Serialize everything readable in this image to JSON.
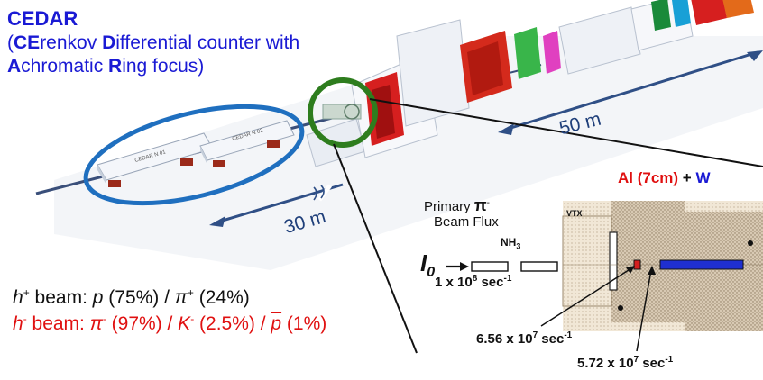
{
  "cedar": {
    "title": "CEDAR",
    "line1_open": "(",
    "line1_b1": "CE",
    "line1_t1": "renkov ",
    "line1_b2": "D",
    "line1_t2": "ifferential counter with",
    "line2_b1": "A",
    "line2_t1": "chromatic ",
    "line2_b2": "R",
    "line2_t2": "ing focus)"
  },
  "cedar_unit_labels": [
    "CEDAR N 01",
    "CEDAR N 02"
  ],
  "distances": {
    "far": "50 m",
    "near": "30 m"
  },
  "beam_composition": {
    "hplus_symbol": "h",
    "hplus_sup": "+",
    "hplus_text1": " beam:  ",
    "hplus_p": "p",
    "hplus_text2": "  (75%) / ",
    "hplus_pi": "π",
    "hplus_pi_sup": "+",
    "hplus_text3": " (24%)",
    "hminus_symbol": "h",
    "hminus_sup": "-",
    "hminus_text1": " beam:  ",
    "hminus_pi": "π",
    "hminus_pi_sup": "-",
    "hminus_text2": " (97%) / ",
    "hminus_k": "K",
    "hminus_k_sup": "-",
    "hminus_text3": "  (2.5%) / ",
    "hminus_pbar": "p",
    "hminus_text4": " (1%)"
  },
  "target": {
    "primary_label": "Primary ",
    "primary_symbol": "π",
    "primary_sup": "-",
    "beam_flux_label": "Beam Flux",
    "i0_symbol": "I",
    "i0_sub": "0",
    "nh3_label": "NH",
    "nh3_sub": "3",
    "flux_initial": "1 x 10",
    "flux_initial_exp": "8",
    "flux_unit": " sec",
    "flux_unit_exp": "-1",
    "flux_mid": "6.56 x 10",
    "flux_mid_exp": "7",
    "flux_final": "5.72 x 10",
    "flux_final_exp": "7",
    "vtx_label": "VTX",
    "al_label": "Al (7cm)",
    "plus_label": " + ",
    "w_label": "W"
  },
  "colors": {
    "cedar_blue": "#1a1ad4",
    "ellipse_blue": "#1f6fbf",
    "ring_green": "#2e7d1e",
    "red_text": "#e01010",
    "tungsten_blue": "#1f2fd0",
    "distance_text": "#1f3f7a"
  }
}
